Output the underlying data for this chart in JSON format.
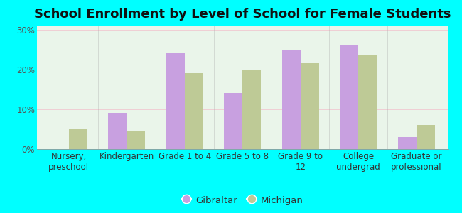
{
  "title": "School Enrollment by Level of School for Female Students",
  "categories": [
    "Nursery,\npreschool",
    "Kindergarten",
    "Grade 1 to 4",
    "Grade 5 to 8",
    "Grade 9 to\n12",
    "College\nundergrad",
    "Graduate or\nprofessional"
  ],
  "gibraltar_values": [
    0,
    9,
    24,
    14,
    25,
    26,
    3
  ],
  "michigan_values": [
    5,
    4.5,
    19,
    20,
    21.5,
    23.5,
    6
  ],
  "gibraltar_color": "#c8a0e0",
  "michigan_color": "#beca96",
  "yticks": [
    0,
    10,
    20,
    30
  ],
  "ytick_labels": [
    "0%",
    "10%",
    "20%",
    "30%"
  ],
  "ylim": [
    0,
    31
  ],
  "background_color": "#00ffff",
  "plot_bg_top": "#ffffff",
  "plot_bg_bottom": "#d0f0d0",
  "legend_labels": [
    "Gibraltar",
    "Michigan"
  ],
  "title_fontsize": 13,
  "tick_fontsize": 8.5,
  "legend_fontsize": 9.5,
  "bar_width": 0.32
}
